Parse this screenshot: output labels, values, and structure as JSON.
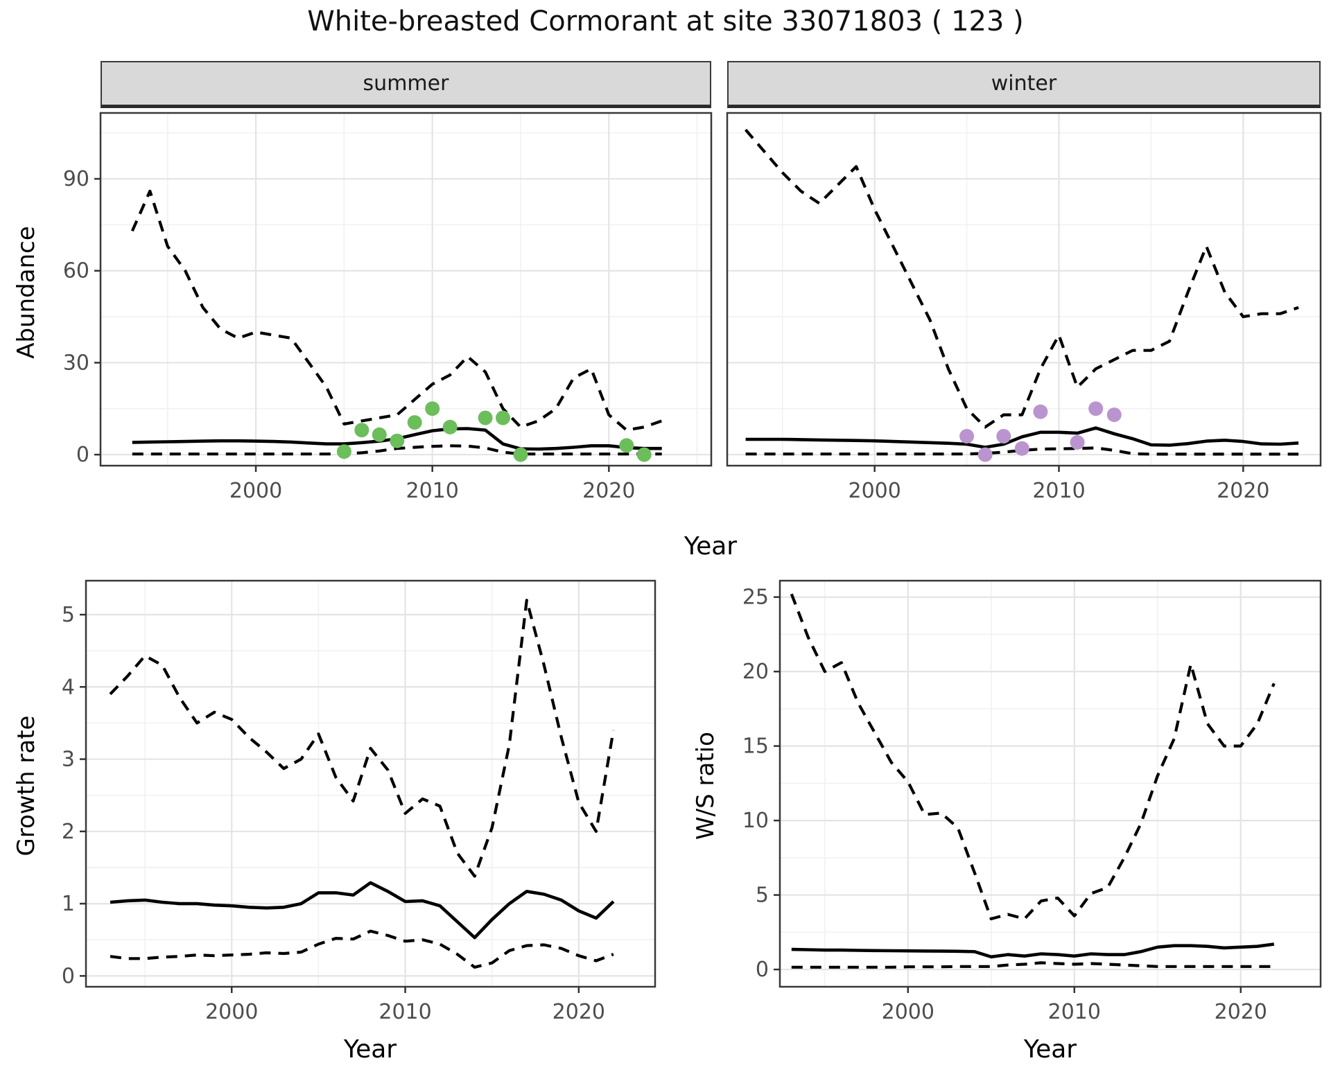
{
  "title": "White-breasted Cormorant at site 33071803 ( 123 )",
  "facets": [
    {
      "label": "summer"
    },
    {
      "label": "winter"
    }
  ],
  "colors": {
    "summer_points": "#6cbe5b",
    "winter_points": "#ba94cf",
    "line": "#000000",
    "strip_bg": "#d9d9d9",
    "panel_bg": "#ffffff",
    "grid_major": "#e4e4e4",
    "grid_minor": "#f1f1f1",
    "axis_text": "#4d4d4d",
    "panel_border": "#383838"
  },
  "chart_data": [
    {
      "id": "abundance",
      "type": "line",
      "title": "",
      "xlabel": "Year",
      "ylabel": "Abundance",
      "x_ticks": [
        2000,
        2010,
        2020
      ],
      "y_ticks": [
        0,
        30,
        60,
        90
      ],
      "x_minor": [
        1995,
        2005,
        2015,
        2025
      ],
      "y_minor": [
        15,
        45,
        75,
        105
      ],
      "ylim": [
        -3.6,
        111.5
      ],
      "grid": true,
      "legend": "none",
      "facets": [
        {
          "label": "summer",
          "xlim": [
            1991.2,
            2025.8
          ],
          "x": [
            1993,
            1994,
            1995,
            1996,
            1997,
            1998,
            1999,
            2000,
            2001,
            2002,
            2003,
            2004,
            2005,
            2006,
            2007,
            2008,
            2009,
            2010,
            2011,
            2012,
            2013,
            2014,
            2015,
            2016,
            2017,
            2018,
            2019,
            2020,
            2021,
            2022,
            2023
          ],
          "series": [
            {
              "name": "upper_ci",
              "style": "dashed",
              "values": [
                73,
                86,
                68,
                60,
                48,
                41,
                38,
                40,
                39,
                38,
                30,
                22,
                10,
                11,
                12,
                13,
                18,
                23,
                26,
                32,
                27,
                15,
                9,
                11,
                15,
                25,
                28,
                13,
                8,
                9,
                11
              ]
            },
            {
              "name": "median",
              "style": "solid",
              "values": [
                4.0,
                4.1,
                4.2,
                4.3,
                4.4,
                4.5,
                4.5,
                4.4,
                4.3,
                4.1,
                3.8,
                3.5,
                3.5,
                3.9,
                4.4,
                5.2,
                6.5,
                7.8,
                8.4,
                8.5,
                8.0,
                3.5,
                1.9,
                1.8,
                2.0,
                2.4,
                2.9,
                2.9,
                2.3,
                2.0,
                2.0
              ]
            },
            {
              "name": "lower_ci",
              "style": "dashed",
              "values": [
                0.2,
                0.2,
                0.2,
                0.2,
                0.2,
                0.2,
                0.2,
                0.2,
                0.2,
                0.2,
                0.2,
                0.2,
                0.3,
                0.6,
                1.2,
                2.0,
                2.4,
                2.7,
                2.9,
                2.8,
                2.2,
                0.8,
                0.2,
                0.2,
                0.2,
                0.2,
                0.2,
                0.2,
                0.2,
                0.2,
                0.2
              ]
            }
          ],
          "points": {
            "name": "observed-counts-summer",
            "color_key": "summer_points",
            "data": [
              [
                2005,
                1
              ],
              [
                2006,
                8
              ],
              [
                2007,
                6.5
              ],
              [
                2008,
                4.5
              ],
              [
                2009,
                10.5
              ],
              [
                2010,
                15
              ],
              [
                2011,
                9
              ],
              [
                2013,
                12
              ],
              [
                2014,
                12
              ],
              [
                2015,
                0
              ],
              [
                2021,
                3
              ],
              [
                2022,
                0
              ]
            ]
          }
        },
        {
          "label": "winter",
          "xlim": [
            1992.0,
            2024.2
          ],
          "x": [
            1993,
            1994,
            1995,
            1996,
            1997,
            1998,
            1999,
            2000,
            2001,
            2002,
            2003,
            2004,
            2005,
            2006,
            2007,
            2008,
            2009,
            2010,
            2011,
            2012,
            2013,
            2014,
            2015,
            2016,
            2017,
            2018,
            2019,
            2020,
            2021,
            2022,
            2023
          ],
          "series": [
            {
              "name": "upper_ci",
              "style": "dashed",
              "values": [
                106,
                99,
                92,
                86,
                82,
                88,
                94,
                80,
                68,
                56,
                44,
                28,
                15,
                9,
                13,
                13,
                28,
                39,
                22,
                28,
                31,
                34,
                34,
                37,
                53,
                68,
                53,
                45,
                46,
                46,
                48
              ]
            },
            {
              "name": "median",
              "style": "solid",
              "values": [
                5.0,
                5.0,
                5.0,
                4.9,
                4.8,
                4.7,
                4.6,
                4.5,
                4.3,
                4.1,
                3.9,
                3.7,
                3.4,
                2.4,
                3.4,
                5.8,
                7.3,
                7.3,
                7.0,
                8.7,
                6.8,
                5.2,
                3.2,
                3.1,
                3.6,
                4.4,
                4.7,
                4.3,
                3.5,
                3.4,
                3.8
              ]
            },
            {
              "name": "lower_ci",
              "style": "dashed",
              "values": [
                0.2,
                0.2,
                0.2,
                0.2,
                0.2,
                0.2,
                0.2,
                0.2,
                0.2,
                0.2,
                0.2,
                0.2,
                0.2,
                0.4,
                0.8,
                1.4,
                1.8,
                1.9,
                2.0,
                2.2,
                1.4,
                0.3,
                0.15,
                0.15,
                0.15,
                0.15,
                0.15,
                0.15,
                0.15,
                0.15,
                0.15
              ]
            }
          ],
          "points": {
            "name": "observed-counts-winter",
            "color_key": "winter_points",
            "data": [
              [
                2005,
                6
              ],
              [
                2006,
                0
              ],
              [
                2007,
                6
              ],
              [
                2008,
                2
              ],
              [
                2009,
                14
              ],
              [
                2011,
                4
              ],
              [
                2012,
                15
              ],
              [
                2013,
                13
              ]
            ]
          }
        }
      ]
    },
    {
      "id": "growth_rate",
      "type": "line",
      "title": "",
      "xlabel": "Year",
      "ylabel": "Growth rate",
      "x_ticks": [
        2000,
        2010,
        2020
      ],
      "y_ticks": [
        0,
        1,
        2,
        3,
        4,
        5
      ],
      "x_minor": [
        1995,
        2005,
        2015
      ],
      "y_minor": [
        0.5,
        1.5,
        2.5,
        3.5,
        4.5
      ],
      "xlim": [
        1991.6,
        2024.4
      ],
      "ylim": [
        -0.15,
        5.47
      ],
      "grid": true,
      "legend": "none",
      "x": [
        1993,
        1994,
        1995,
        1996,
        1997,
        1998,
        1999,
        2000,
        2001,
        2002,
        2003,
        2004,
        2005,
        2006,
        2007,
        2008,
        2009,
        2010,
        2011,
        2012,
        2013,
        2014,
        2015,
        2016,
        2017,
        2018,
        2019,
        2020,
        2021,
        2022
      ],
      "series": [
        {
          "name": "upper_ci",
          "style": "dashed",
          "values": [
            3.9,
            4.15,
            4.43,
            4.3,
            3.85,
            3.5,
            3.65,
            3.55,
            3.3,
            3.1,
            2.87,
            3.0,
            3.35,
            2.75,
            2.42,
            3.15,
            2.85,
            2.25,
            2.45,
            2.35,
            1.7,
            1.38,
            2.05,
            3.2,
            5.2,
            4.3,
            3.3,
            2.4,
            2.0,
            3.4
          ]
        },
        {
          "name": "median",
          "style": "solid",
          "values": [
            1.02,
            1.04,
            1.05,
            1.02,
            1.0,
            1.0,
            0.98,
            0.97,
            0.95,
            0.94,
            0.95,
            1.0,
            1.15,
            1.15,
            1.12,
            1.29,
            1.17,
            1.03,
            1.04,
            0.97,
            0.75,
            0.53,
            0.78,
            1.0,
            1.17,
            1.13,
            1.05,
            0.9,
            0.8,
            1.03
          ]
        },
        {
          "name": "lower_ci",
          "style": "dashed",
          "values": [
            0.27,
            0.24,
            0.24,
            0.26,
            0.27,
            0.29,
            0.28,
            0.29,
            0.3,
            0.32,
            0.31,
            0.33,
            0.44,
            0.52,
            0.51,
            0.62,
            0.56,
            0.48,
            0.5,
            0.44,
            0.3,
            0.12,
            0.18,
            0.35,
            0.42,
            0.43,
            0.38,
            0.28,
            0.21,
            0.3
          ]
        }
      ]
    },
    {
      "id": "ws_ratio",
      "type": "line",
      "title": "",
      "xlabel": "Year",
      "ylabel": "W/S ratio",
      "x_ticks": [
        2000,
        2010,
        2020
      ],
      "y_ticks": [
        0,
        5,
        10,
        15,
        20,
        25
      ],
      "x_minor": [
        1995,
        2005,
        2015
      ],
      "y_minor": [
        2.5,
        7.5,
        12.5,
        17.5,
        22.5
      ],
      "xlim": [
        1992.3,
        2024.8
      ],
      "ylim": [
        -1.16,
        26.1
      ],
      "grid": true,
      "legend": "none",
      "x": [
        1993,
        1994,
        1995,
        1996,
        1997,
        1998,
        1999,
        2000,
        2001,
        2002,
        2003,
        2004,
        2005,
        2006,
        2007,
        2008,
        2009,
        2010,
        2011,
        2012,
        2013,
        2014,
        2015,
        2016,
        2017,
        2018,
        2019,
        2020,
        2021,
        2022
      ],
      "series": [
        {
          "name": "upper_ci",
          "style": "dashed",
          "values": [
            25.2,
            22.3,
            20.0,
            20.6,
            17.9,
            15.9,
            13.9,
            12.6,
            10.4,
            10.5,
            9.5,
            6.5,
            3.4,
            3.7,
            3.4,
            4.6,
            4.8,
            3.6,
            5.1,
            5.5,
            7.5,
            9.8,
            13.0,
            15.5,
            20.5,
            16.5,
            15.0,
            15.0,
            16.5,
            19.2
          ]
        },
        {
          "name": "median",
          "style": "solid",
          "values": [
            1.35,
            1.33,
            1.3,
            1.3,
            1.28,
            1.27,
            1.26,
            1.25,
            1.24,
            1.23,
            1.22,
            1.2,
            0.85,
            1.0,
            0.9,
            1.05,
            1.0,
            0.9,
            1.05,
            1.0,
            1.0,
            1.2,
            1.5,
            1.6,
            1.6,
            1.55,
            1.45,
            1.5,
            1.55,
            1.7
          ]
        },
        {
          "name": "lower_ci",
          "style": "dashed",
          "values": [
            0.15,
            0.15,
            0.15,
            0.15,
            0.15,
            0.15,
            0.15,
            0.18,
            0.18,
            0.18,
            0.2,
            0.2,
            0.2,
            0.3,
            0.35,
            0.45,
            0.4,
            0.35,
            0.4,
            0.35,
            0.3,
            0.25,
            0.2,
            0.2,
            0.2,
            0.2,
            0.2,
            0.2,
            0.2,
            0.2
          ]
        }
      ]
    }
  ]
}
